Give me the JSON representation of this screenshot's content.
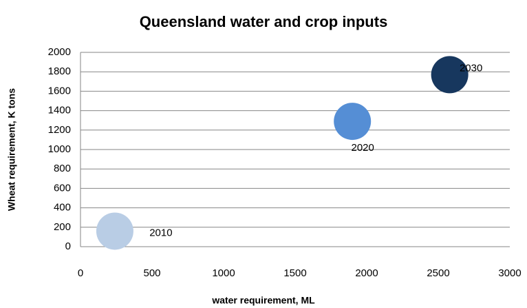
{
  "chart_data": {
    "type": "bubble",
    "title": "Queensland  water and crop inputs",
    "x_label": "water requirement, ML",
    "y_label": "Wheat requirement, K tons",
    "points": [
      {
        "label": "2010",
        "x": 240,
        "y": 160,
        "color": "#b9cde5"
      },
      {
        "label": "2020",
        "x": 1900,
        "y": 1290,
        "color": "#558ed5"
      },
      {
        "label": "2030",
        "x": 2580,
        "y": 1770,
        "color": "#17375e"
      }
    ],
    "xlim": [
      0,
      3000
    ],
    "xticks": [
      0,
      500,
      1000,
      1500,
      2000,
      2500,
      3000
    ],
    "ylim": [
      0,
      2000
    ],
    "yticks": [
      0,
      200,
      400,
      600,
      800,
      1000,
      1200,
      1400,
      1600,
      1800,
      2000
    ],
    "grid": true
  }
}
